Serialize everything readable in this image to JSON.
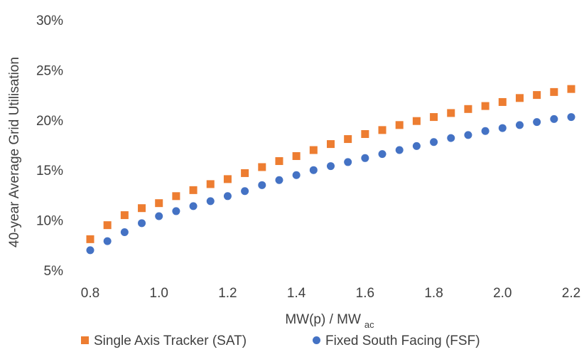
{
  "chart_data": {
    "type": "scatter",
    "title": "",
    "xlabel": "MW(p) / MW",
    "xlabel_subscript": "ac",
    "ylabel": "40-year Average Grid Utilisation",
    "xlim": [
      0.8,
      2.2
    ],
    "ylim": [
      5,
      30
    ],
    "x_ticks": [
      "0.8",
      "1.0",
      "1.2",
      "1.4",
      "1.6",
      "1.8",
      "2.0",
      "2.2"
    ],
    "y_ticks": [
      "5%",
      "10%",
      "15%",
      "20%",
      "25%",
      "30%"
    ],
    "grid": false,
    "legend_position": "bottom",
    "x": [
      0.8,
      0.85,
      0.9,
      0.95,
      1.0,
      1.05,
      1.1,
      1.15,
      1.2,
      1.25,
      1.3,
      1.35,
      1.4,
      1.45,
      1.5,
      1.55,
      1.6,
      1.65,
      1.7,
      1.75,
      1.8,
      1.85,
      1.9,
      1.95,
      2.0,
      2.05,
      2.1,
      2.15,
      2.2
    ],
    "series": [
      {
        "name": "Single Axis Tracker (SAT)",
        "marker": "square",
        "color": "#ED7D31",
        "values": [
          8.1,
          9.5,
          10.5,
          11.2,
          11.7,
          12.4,
          13.0,
          13.6,
          14.1,
          14.7,
          15.3,
          15.9,
          16.4,
          17.0,
          17.6,
          18.1,
          18.6,
          19.0,
          19.5,
          19.9,
          20.3,
          20.7,
          21.1,
          21.4,
          21.8,
          22.2,
          22.5,
          22.8,
          23.1
        ]
      },
      {
        "name": "Fixed South Facing (FSF)",
        "marker": "circle",
        "color": "#4472C4",
        "values": [
          7.0,
          7.9,
          8.8,
          9.7,
          10.4,
          10.9,
          11.4,
          11.9,
          12.4,
          12.9,
          13.5,
          14.0,
          14.5,
          15.0,
          15.4,
          15.8,
          16.2,
          16.6,
          17.0,
          17.4,
          17.8,
          18.2,
          18.5,
          18.9,
          19.2,
          19.5,
          19.8,
          20.1,
          20.3
        ]
      }
    ]
  }
}
